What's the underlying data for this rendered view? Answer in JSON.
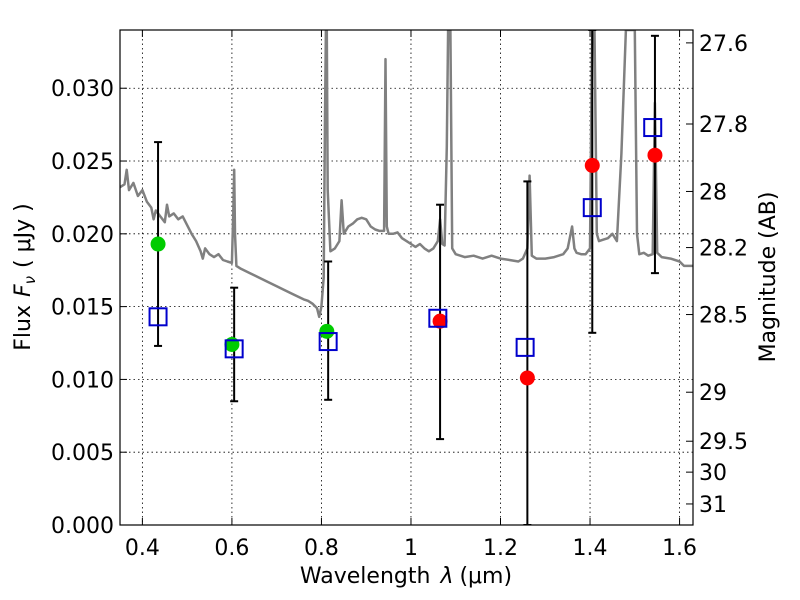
{
  "chart_data": {
    "type": "scatter",
    "title": "",
    "xlabel": "Wavelength",
    "xlabel_symbol": "λ",
    "xlabel_unit": "(μm)",
    "ylabel": "Flux",
    "ylabel_symbol": "F",
    "ylabel_sub": "ν",
    "ylabel_unit": "( μJy )",
    "y2label": "Magnitude (AB)",
    "xlim": [
      0.35,
      1.63
    ],
    "ylim": [
      0.0,
      0.034
    ],
    "grid": true,
    "x_ticks": [
      {
        "v": 0.4,
        "label": "0.4"
      },
      {
        "v": 0.6,
        "label": "0.6"
      },
      {
        "v": 0.8,
        "label": "0.8"
      },
      {
        "v": 1.0,
        "label": "1"
      },
      {
        "v": 1.2,
        "label": "1.2"
      },
      {
        "v": 1.4,
        "label": "1.4"
      },
      {
        "v": 1.6,
        "label": "1.6"
      }
    ],
    "y_ticks": [
      {
        "v": 0.0,
        "label": "0.000"
      },
      {
        "v": 0.005,
        "label": "0.005"
      },
      {
        "v": 0.01,
        "label": "0.010"
      },
      {
        "v": 0.015,
        "label": "0.015"
      },
      {
        "v": 0.02,
        "label": "0.020"
      },
      {
        "v": 0.025,
        "label": "0.025"
      },
      {
        "v": 0.03,
        "label": "0.030"
      }
    ],
    "mag_ticks": [
      {
        "mag": 27.6,
        "label": "27.6"
      },
      {
        "mag": 27.8,
        "label": "27.8"
      },
      {
        "mag": 28.0,
        "label": "28"
      },
      {
        "mag": 28.2,
        "label": "28.2"
      },
      {
        "mag": 28.5,
        "label": "28.5"
      },
      {
        "mag": 29.0,
        "label": "29"
      },
      {
        "mag": 29.5,
        "label": "29.5"
      },
      {
        "mag": 30.0,
        "label": "30"
      },
      {
        "mag": 31.0,
        "label": "31"
      }
    ],
    "series": [
      {
        "name": "model spectrum",
        "kind": "line",
        "color": "#808080",
        "points": [
          [
            0.35,
            0.0232
          ],
          [
            0.36,
            0.0234
          ],
          [
            0.365,
            0.0244
          ],
          [
            0.37,
            0.023
          ],
          [
            0.38,
            0.0235
          ],
          [
            0.39,
            0.0226
          ],
          [
            0.4,
            0.023
          ],
          [
            0.41,
            0.0222
          ],
          [
            0.42,
            0.0218
          ],
          [
            0.425,
            0.021
          ],
          [
            0.43,
            0.0216
          ],
          [
            0.44,
            0.0212
          ],
          [
            0.45,
            0.0208
          ],
          [
            0.455,
            0.022
          ],
          [
            0.46,
            0.0212
          ],
          [
            0.47,
            0.0214
          ],
          [
            0.48,
            0.021
          ],
          [
            0.49,
            0.0212
          ],
          [
            0.5,
            0.0206
          ],
          [
            0.51,
            0.02
          ],
          [
            0.52,
            0.0195
          ],
          [
            0.53,
            0.0188
          ],
          [
            0.535,
            0.0183
          ],
          [
            0.54,
            0.019
          ],
          [
            0.55,
            0.0186
          ],
          [
            0.56,
            0.0184
          ],
          [
            0.57,
            0.0186
          ],
          [
            0.58,
            0.0182
          ],
          [
            0.59,
            0.0181
          ],
          [
            0.6,
            0.018
          ],
          [
            0.603,
            0.0215
          ],
          [
            0.605,
            0.0244
          ],
          [
            0.607,
            0.02
          ],
          [
            0.61,
            0.0178
          ],
          [
            0.62,
            0.0176
          ],
          [
            0.64,
            0.0173
          ],
          [
            0.66,
            0.017
          ],
          [
            0.68,
            0.0167
          ],
          [
            0.7,
            0.0164
          ],
          [
            0.72,
            0.0161
          ],
          [
            0.74,
            0.0158
          ],
          [
            0.76,
            0.0155
          ],
          [
            0.77,
            0.0154
          ],
          [
            0.78,
            0.0152
          ],
          [
            0.79,
            0.0149
          ],
          [
            0.795,
            0.0143
          ],
          [
            0.8,
            0.015
          ],
          [
            0.805,
            0.017
          ],
          [
            0.808,
            0.028
          ],
          [
            0.81,
            0.034
          ],
          [
            0.812,
            0.034
          ],
          [
            0.814,
            0.023
          ],
          [
            0.82,
            0.0188
          ],
          [
            0.83,
            0.019
          ],
          [
            0.84,
            0.0195
          ],
          [
            0.845,
            0.0223
          ],
          [
            0.85,
            0.02
          ],
          [
            0.86,
            0.0205
          ],
          [
            0.87,
            0.0207
          ],
          [
            0.88,
            0.021
          ],
          [
            0.89,
            0.0211
          ],
          [
            0.9,
            0.021
          ],
          [
            0.91,
            0.0205
          ],
          [
            0.92,
            0.0203
          ],
          [
            0.93,
            0.0202
          ],
          [
            0.94,
            0.0202
          ],
          [
            0.943,
            0.032
          ],
          [
            0.946,
            0.0205
          ],
          [
            0.95,
            0.02
          ],
          [
            0.96,
            0.02
          ],
          [
            0.97,
            0.0201
          ],
          [
            0.98,
            0.0197
          ],
          [
            0.99,
            0.0195
          ],
          [
            1.0,
            0.0193
          ],
          [
            1.01,
            0.0191
          ],
          [
            1.02,
            0.0193
          ],
          [
            1.03,
            0.019
          ],
          [
            1.04,
            0.0188
          ],
          [
            1.05,
            0.019
          ],
          [
            1.06,
            0.0195
          ],
          [
            1.065,
            0.021
          ],
          [
            1.07,
            0.0193
          ],
          [
            1.075,
            0.0192
          ],
          [
            1.08,
            0.026
          ],
          [
            1.083,
            0.034
          ],
          [
            1.088,
            0.034
          ],
          [
            1.092,
            0.019
          ],
          [
            1.1,
            0.0186
          ],
          [
            1.12,
            0.0184
          ],
          [
            1.14,
            0.0185
          ],
          [
            1.16,
            0.0183
          ],
          [
            1.18,
            0.0185
          ],
          [
            1.2,
            0.0183
          ],
          [
            1.22,
            0.0182
          ],
          [
            1.24,
            0.0181
          ],
          [
            1.25,
            0.0183
          ],
          [
            1.26,
            0.019
          ],
          [
            1.265,
            0.024
          ],
          [
            1.27,
            0.0185
          ],
          [
            1.28,
            0.0183
          ],
          [
            1.3,
            0.0183
          ],
          [
            1.32,
            0.0184
          ],
          [
            1.34,
            0.0186
          ],
          [
            1.35,
            0.019
          ],
          [
            1.36,
            0.0205
          ],
          [
            1.365,
            0.019
          ],
          [
            1.37,
            0.0187
          ],
          [
            1.38,
            0.0186
          ],
          [
            1.39,
            0.0186
          ],
          [
            1.4,
            0.019
          ],
          [
            1.403,
            0.029
          ],
          [
            1.405,
            0.034
          ],
          [
            1.41,
            0.034
          ],
          [
            1.415,
            0.02
          ],
          [
            1.42,
            0.0195
          ],
          [
            1.43,
            0.0196
          ],
          [
            1.44,
            0.0197
          ],
          [
            1.45,
            0.02
          ],
          [
            1.46,
            0.0195
          ],
          [
            1.47,
            0.0255
          ],
          [
            1.48,
            0.034
          ],
          [
            1.49,
            0.034
          ],
          [
            1.5,
            0.034
          ],
          [
            1.505,
            0.02
          ],
          [
            1.51,
            0.0186
          ],
          [
            1.52,
            0.0187
          ],
          [
            1.53,
            0.0185
          ],
          [
            1.54,
            0.0186
          ],
          [
            1.545,
            0.029
          ],
          [
            1.55,
            0.0187
          ],
          [
            1.56,
            0.0184
          ],
          [
            1.58,
            0.0183
          ],
          [
            1.6,
            0.0181
          ],
          [
            1.61,
            0.0178
          ],
          [
            1.63,
            0.0178
          ]
        ]
      },
      {
        "name": "green measured",
        "kind": "circle",
        "color": "#00cc00",
        "points": [
          [
            0.435,
            0.0193
          ],
          [
            0.6,
            0.0124
          ],
          [
            0.812,
            0.0133
          ]
        ]
      },
      {
        "name": "red measured",
        "kind": "circle",
        "color": "#ff0000",
        "points": [
          [
            1.065,
            0.014
          ],
          [
            1.26,
            0.0101
          ],
          [
            1.405,
            0.0247
          ],
          [
            1.545,
            0.0254
          ]
        ]
      },
      {
        "name": "model photometry",
        "kind": "square",
        "color": "#0000cc",
        "points": [
          [
            0.435,
            0.0143
          ],
          [
            0.605,
            0.0121
          ],
          [
            0.815,
            0.0126
          ],
          [
            1.06,
            0.0142
          ],
          [
            1.255,
            0.0122
          ],
          [
            1.405,
            0.0218
          ],
          [
            1.54,
            0.0273
          ]
        ]
      },
      {
        "name": "error bars",
        "kind": "errorbar",
        "color": "#000000",
        "bars": [
          {
            "x": 0.435,
            "lo": 0.0123,
            "hi": 0.0263
          },
          {
            "x": 0.605,
            "lo": 0.0085,
            "hi": 0.0163
          },
          {
            "x": 0.815,
            "lo": 0.0086,
            "hi": 0.0181
          },
          {
            "x": 1.065,
            "lo": 0.0059,
            "hi": 0.022
          },
          {
            "x": 1.26,
            "lo": 0.0,
            "hi": 0.0236
          },
          {
            "x": 1.405,
            "lo": 0.0132,
            "hi": 0.034
          },
          {
            "x": 1.545,
            "lo": 0.0173,
            "hi": 0.0336
          }
        ]
      }
    ]
  }
}
